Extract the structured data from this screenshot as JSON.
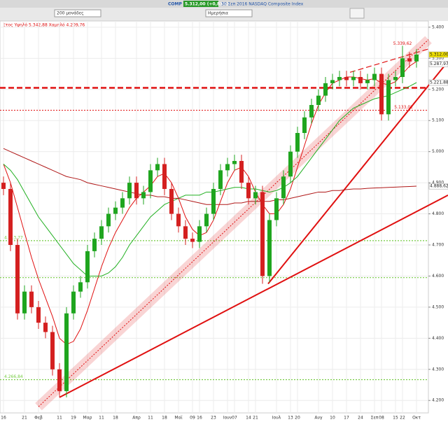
{
  "toolbar": {
    "symbol": "COMP",
    "quote": "5.312,00 (+0,81%)",
    "description": "30 Σεπ 2016 NASDAQ Composite Index",
    "scale_select": "200 μονάδες",
    "period_select": "Ημερήσια"
  },
  "chart_data": {
    "type": "candlestick",
    "subtitle": "Ετος Υψηλό 5.342,88 Χαμηλό 4.209,76",
    "categories": [
      "16",
      null,
      null,
      "21",
      null,
      "Φεβ",
      null,
      null,
      "11",
      null,
      "19",
      null,
      "Μαρ",
      null,
      "11",
      null,
      "18",
      null,
      null,
      "Απρ",
      null,
      "11",
      null,
      "18",
      null,
      "Μαϊ",
      null,
      "09",
      "16",
      null,
      "23",
      null,
      "Ιουν",
      "07",
      null,
      "14",
      "21",
      null,
      null,
      "Ιουλ",
      null,
      "13",
      "20",
      null,
      null,
      "Αυγ",
      null,
      "10",
      null,
      "17",
      null,
      "24",
      null,
      "Σεπ",
      "08",
      null,
      "15",
      "22",
      null,
      "Οκτ"
    ],
    "open": [
      4900,
      4880,
      4700,
      4480,
      4550,
      4500,
      4450,
      4420,
      4300,
      4230,
      4480,
      4550,
      4580,
      4680,
      4720,
      4760,
      4800,
      4820,
      4850,
      4900,
      4850,
      4870,
      4940,
      4960,
      4880,
      4800,
      4760,
      4720,
      4710,
      4760,
      4800,
      4880,
      4940,
      4960,
      4970,
      4900,
      4850,
      4870,
      4600,
      4780,
      4850,
      4920,
      5000,
      5060,
      5110,
      5150,
      5180,
      5220,
      5230,
      5240,
      5230,
      5240,
      5220,
      5230,
      5250,
      5120,
      5230,
      5240,
      5300,
      5290
    ],
    "high": [
      4920,
      4900,
      4720,
      4570,
      4570,
      4520,
      4470,
      4440,
      4320,
      4500,
      4570,
      4600,
      4700,
      4740,
      4780,
      4820,
      4840,
      4870,
      4920,
      4920,
      4890,
      4960,
      4980,
      4980,
      4900,
      4820,
      4780,
      4740,
      4780,
      4820,
      4900,
      4960,
      4980,
      4990,
      4990,
      4920,
      4890,
      4890,
      4800,
      4870,
      4940,
      5020,
      5080,
      5130,
      5170,
      5200,
      5240,
      5250,
      5260,
      5260,
      5260,
      5260,
      5250,
      5270,
      5270,
      5250,
      5260,
      5340,
      5320,
      5330
    ],
    "low": [
      4860,
      4680,
      4460,
      4460,
      4480,
      4430,
      4400,
      4280,
      4210,
      4210,
      4460,
      4530,
      4560,
      4660,
      4700,
      4740,
      4780,
      4800,
      4830,
      4830,
      4830,
      4850,
      4920,
      4860,
      4780,
      4740,
      4700,
      4690,
      4690,
      4740,
      4780,
      4860,
      4920,
      4940,
      4880,
      4830,
      4830,
      4575,
      4580,
      4760,
      4830,
      4900,
      4980,
      5040,
      5090,
      5130,
      5160,
      5200,
      5210,
      5210,
      5210,
      5200,
      5200,
      5210,
      5100,
      5100,
      5210,
      5220,
      5270,
      5270
    ],
    "close": [
      4880,
      4700,
      4480,
      4550,
      4500,
      4450,
      4420,
      4300,
      4230,
      4480,
      4550,
      4580,
      4680,
      4720,
      4760,
      4800,
      4820,
      4850,
      4900,
      4850,
      4870,
      4940,
      4960,
      4880,
      4800,
      4760,
      4720,
      4710,
      4760,
      4800,
      4880,
      4940,
      4960,
      4970,
      4900,
      4850,
      4870,
      4600,
      4780,
      4850,
      4920,
      5000,
      5060,
      5110,
      5150,
      5180,
      5220,
      5230,
      5240,
      5230,
      5240,
      5220,
      5230,
      5250,
      5120,
      5230,
      5240,
      5300,
      5290,
      5312
    ],
    "up_color": "#1fa51f",
    "down_color": "#d42020",
    "lines": [
      {
        "color": "#e01010",
        "values": [
          4960,
          4900,
          4820,
          4740,
          4660,
          4590,
          4530,
          4470,
          4400,
          4380,
          4390,
          4430,
          4490,
          4560,
          4630,
          4690,
          4740,
          4780,
          4820,
          4850,
          4870,
          4890,
          4920,
          4930,
          4900,
          4850,
          4790,
          4750,
          4730,
          4740,
          4780,
          4840,
          4900,
          4940,
          4950,
          4920,
          4870,
          4830,
          4800,
          4800,
          4830,
          4880,
          4950,
          5020,
          5090,
          5150,
          5190,
          5220,
          5230,
          5240,
          5240,
          5235,
          5230,
          5235,
          5220,
          5215,
          5225,
          5250,
          5275,
          5290
        ]
      },
      {
        "color": "#22b022",
        "values": [
          4960,
          4940,
          4910,
          4870,
          4830,
          4790,
          4760,
          4730,
          4700,
          4670,
          4640,
          4620,
          4600,
          4600,
          4600,
          4610,
          4630,
          4660,
          4700,
          4730,
          4760,
          4790,
          4810,
          4830,
          4840,
          4850,
          4860,
          4860,
          4860,
          4870,
          4870,
          4875,
          4880,
          4885,
          4885,
          4880,
          4880,
          4875,
          4870,
          4875,
          4885,
          4900,
          4920,
          4950,
          4980,
          5010,
          5040,
          5070,
          5100,
          5120,
          5140,
          5150,
          5160,
          5170,
          5175,
          5180,
          5190,
          5200,
          5210,
          5222
        ]
      },
      {
        "color": "#b01818",
        "values": [
          5010,
          5000,
          4990,
          4980,
          4970,
          4960,
          4950,
          4940,
          4930,
          4920,
          4915,
          4910,
          4900,
          4895,
          4890,
          4885,
          4880,
          4875,
          4870,
          4865,
          4860,
          4860,
          4855,
          4855,
          4850,
          4850,
          4845,
          4840,
          4835,
          4830,
          4830,
          4830,
          4830,
          4835,
          4835,
          4840,
          4840,
          4840,
          4840,
          4845,
          4845,
          4850,
          4855,
          4860,
          4865,
          4870,
          4870,
          4875,
          4875,
          4878,
          4880,
          4880,
          4882,
          4883,
          4884,
          4885,
          4886,
          4887,
          4888,
          4889
        ]
      }
    ],
    "hlines": [
      {
        "value": 5205,
        "color": "#e01010",
        "style": "dashed",
        "width": 2.5
      },
      {
        "value": 5133.02,
        "label": "5.133,02",
        "color": "#e01010",
        "style": "dotted",
        "width": 1
      },
      {
        "value": 4713.77,
        "label": "4.713,77",
        "color": "#77cc44",
        "style": "dotted",
        "width": 1.2
      },
      {
        "value": 4595,
        "color": "#77cc44",
        "style": "dotted",
        "width": 1.2
      },
      {
        "value": 4266.84,
        "label": "4.266,84",
        "color": "#77cc44",
        "style": "dotted",
        "width": 1.2
      }
    ],
    "trendlines": [
      {
        "points": [
          [
            5,
            4180
          ],
          [
            60.7,
            5360
          ]
        ],
        "color": "#e01010",
        "style": "dotted",
        "width": 1,
        "glow": true
      },
      {
        "points": [
          [
            8,
            4210
          ],
          [
            63.5,
            4860
          ]
        ],
        "color": "#e01010",
        "style": "solid",
        "width": 2,
        "glow": false
      },
      {
        "points": [
          [
            37.8,
            4575
          ],
          [
            63.5,
            5290
          ]
        ],
        "color": "#e01010",
        "style": "solid",
        "width": 2,
        "glow": false
      },
      {
        "points": [
          [
            49.5,
            5255
          ],
          [
            60.7,
            5330
          ]
        ],
        "color": "#e01010",
        "style": "dashed",
        "width": 1.2,
        "glow": false
      }
    ],
    "annotations": [
      {
        "x": 57,
        "value": 5339.62,
        "label": "5.339,62",
        "color": "#e01010"
      }
    ],
    "price_tags": [
      {
        "value": 5312,
        "label": "5.312,00",
        "color": "#f0e000"
      },
      {
        "value": 5287.97,
        "label": "5.287,97",
        "color": "#ffffff"
      },
      {
        "value": 5221.88,
        "label": "5.221,88",
        "color": "#ffffff"
      },
      {
        "value": 4888.62,
        "label": "4.888,62",
        "color": "#ffffff"
      }
    ],
    "ylim": [
      4160,
      5420
    ],
    "yticks": [
      {
        "value": 4200,
        "label": "4.200"
      },
      {
        "value": 4300,
        "label": "4.300"
      },
      {
        "value": 4400,
        "label": "4.400"
      },
      {
        "value": 4500,
        "label": "4.500"
      },
      {
        "value": 4600,
        "label": "4.600"
      },
      {
        "value": 4700,
        "label": "4.700"
      },
      {
        "value": 4800,
        "label": "4.800"
      },
      {
        "value": 4900,
        "label": "4.900"
      },
      {
        "value": 5000,
        "label": "5.000"
      },
      {
        "value": 5100,
        "label": "5.100"
      },
      {
        "value": 5200,
        "label": "5.200"
      },
      {
        "value": 5300,
        "label": "5.300"
      },
      {
        "value": 5400,
        "label": "5.400"
      }
    ],
    "grid": true
  }
}
